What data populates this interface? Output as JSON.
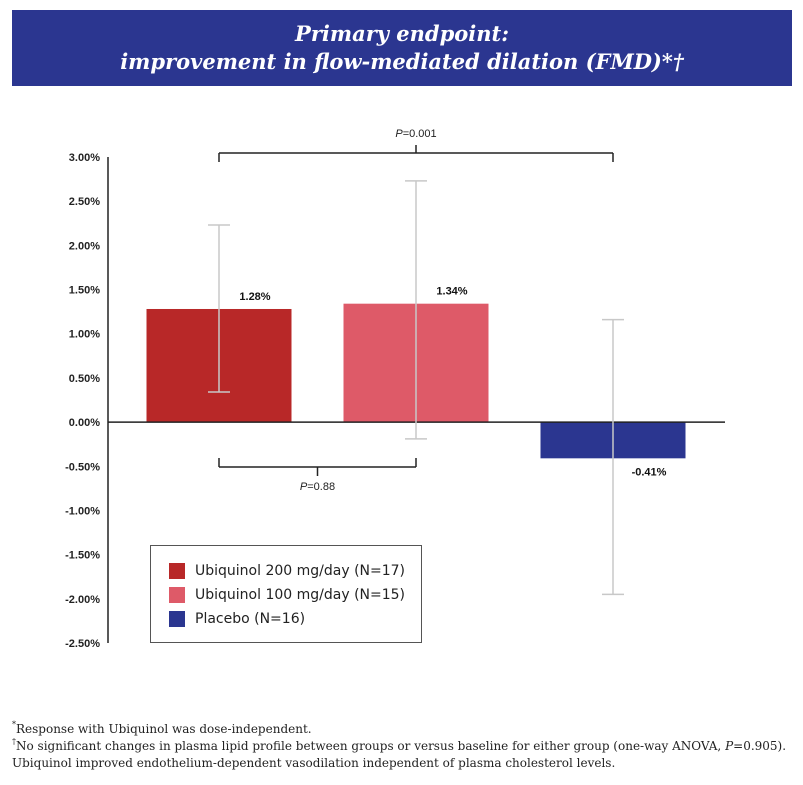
{
  "header": {
    "line1": "Primary endpoint:",
    "line2": "improvement in flow-mediated dilation (FMD)*†"
  },
  "chart_data": {
    "type": "bar",
    "categories": [
      "Ubiquinol 200 mg/day (N=17)",
      "Ubiquinol 100 mg/day (N=15)",
      "Placebo (N=16)"
    ],
    "values": [
      1.28,
      1.34,
      -0.41
    ],
    "value_labels": [
      "1.28%",
      "1.34%",
      "-0.41%"
    ],
    "error_low": [
      0.34,
      -0.19,
      -1.95
    ],
    "error_high": [
      2.23,
      2.73,
      1.16
    ],
    "colors": [
      "#b82828",
      "#de5a68",
      "#2b3690"
    ],
    "ylim": [
      -2.5,
      3.0
    ],
    "yticks": [
      3.0,
      2.5,
      2.0,
      1.5,
      1.0,
      0.5,
      0.0,
      -0.5,
      -1.0,
      -1.5,
      -2.0,
      -2.5
    ],
    "ytick_labels": [
      "3.00%",
      "2.50%",
      "2.00%",
      "1.50%",
      "1.00%",
      "0.50%",
      "0.00%",
      "-0.50%",
      "-1.00%",
      "-1.50%",
      "-2.00%",
      "-2.50%"
    ],
    "comparisons": [
      {
        "from": 0,
        "to": 2,
        "label_prefix": "P",
        "label_value": "=0.001",
        "position": "above"
      },
      {
        "from": 0,
        "to": 1,
        "label_prefix": "P",
        "label_value": "=0.88",
        "position": "below"
      }
    ],
    "legend": [
      {
        "label": "Ubiquinol 200 mg/day (N=17)",
        "color": "#b82828"
      },
      {
        "label": "Ubiquinol 100 mg/day (N=15)",
        "color": "#de5a68"
      },
      {
        "label": "Placebo (N=16)",
        "color": "#2b3690"
      }
    ],
    "grid": false,
    "legend_placement": "bottom-left"
  },
  "footnotes": {
    "note1_mark": "*",
    "note1": "Response with Ubiquinol was dose-independent.",
    "note2_mark": "†",
    "note2_a": "No significant changes in plasma lipid profile between groups or versus baseline for either group (one-way ANOVA, ",
    "note2_p": "P",
    "note2_b": "=0.905).",
    "note3": "Ubiquinol improved endothelium-dependent vasodilation independent of plasma cholesterol levels."
  }
}
